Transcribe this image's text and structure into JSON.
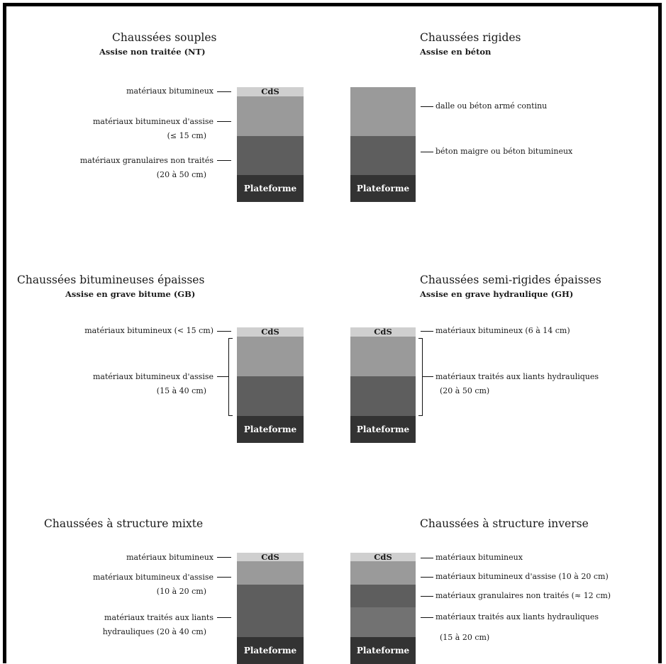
{
  "panels": {
    "souples": {
      "title": "Chaussées souples",
      "subtitle": "Assise non traitée (NT)",
      "labels": [
        "matériaux bitumineux",
        "matériaux bitumineux d'assise",
        "(≤ 15 cm)",
        "matériaux granulaires non traités",
        "(20 à 50 cm)"
      ],
      "cds": "CdS",
      "plateforme": "Plateforme"
    },
    "rigides": {
      "title": "Chaussées rigides",
      "subtitle": "Assise en béton",
      "labels": [
        "dalle ou béton armé continu",
        "béton maigre ou béton bitumineux"
      ],
      "plateforme": "Plateforme"
    },
    "bitumineuses": {
      "title": "Chaussées bitumineuses épaisses",
      "subtitle": "Assise en grave bitume (GB)",
      "labels": [
        "matériaux bitumineux (< 15 cm)",
        "matériaux bitumineux d'assise",
        "(15 à 40 cm)"
      ],
      "cds": "CdS",
      "plateforme": "Plateforme"
    },
    "semirigides": {
      "title": "Chaussées semi-rigides épaisses",
      "subtitle": "Assise en grave hydraulique (GH)",
      "labels": [
        "matériaux bitumineux (6 à 14 cm)",
        "matériaux traités aux liants hydrauliques",
        "(20 à 50 cm)"
      ],
      "cds": "CdS",
      "plateforme": "Plateforme"
    },
    "mixte": {
      "title": "Chaussées à structure mixte",
      "labels": [
        "matériaux bitumineux",
        "matériaux bitumineux d'assise",
        "(10 à 20 cm)",
        "matériaux traités aux liants",
        "hydrauliques (20 à 40 cm)"
      ],
      "cds": "CdS",
      "plateforme": "Plateforme"
    },
    "inverse": {
      "title": "Chaussées à structure inverse",
      "labels": [
        "matériaux bitumineux",
        "matériaux bitumineux d'assise (10 à 20 cm)",
        "matériaux granulaires non traités (≈ 12 cm)",
        "matériaux traités aux liants hydrauliques",
        "(15 à 20 cm)"
      ],
      "cds": "CdS",
      "plateforme": "Plateforme"
    }
  },
  "colors": {
    "cds": "#cfcfcf",
    "bituminous": "#9a9a9a",
    "granular": "#5e5e5e",
    "treated": "#727272",
    "plateforme": "#333333"
  }
}
